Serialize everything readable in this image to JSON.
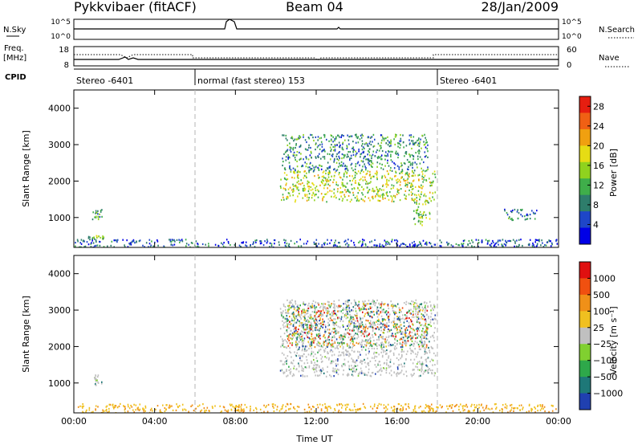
{
  "header": {
    "station": "Pykkvibaer (fitACF)",
    "beam": "Beam 04",
    "date": "28/Jan/2009"
  },
  "sky_panel": {
    "left_label": "N.Sky",
    "right_label": "N.Search",
    "left_ticks": [
      "10^5",
      "10^0"
    ],
    "right_ticks": [
      "10^5",
      "10^0"
    ]
  },
  "freq_panel": {
    "left_label": "Freq.",
    "left_unit": "[MHz]",
    "right_label": "Nave",
    "left_ticks": [
      "18",
      "8"
    ],
    "right_ticks": [
      "60",
      "0"
    ]
  },
  "cpid_panel": {
    "label": "CPID",
    "segments": [
      {
        "start": 0,
        "end": 6,
        "text": "Stereo -6401"
      },
      {
        "start": 6,
        "end": 18,
        "text": "normal (fast stereo) 153"
      },
      {
        "start": 18,
        "end": 24,
        "text": "Stereo -6401"
      }
    ]
  },
  "chart_data": [
    {
      "type": "heatmap",
      "panel": "power",
      "xlabel": "",
      "ylabel": "Slant Range [km]",
      "xlim": [
        0,
        24
      ],
      "ylim": [
        180,
        4500
      ],
      "yticks": [
        "1000",
        "2000",
        "3000",
        "4000"
      ],
      "colorbar": {
        "label": "Power [dB]",
        "tick_labels": [
          "4",
          "8",
          "12",
          "16",
          "20",
          "24",
          "28"
        ],
        "range": [
          0,
          30
        ],
        "colors": [
          "#0000e6",
          "#1e46c8",
          "#2e7d6b",
          "#3fae4a",
          "#90d21e",
          "#e6dc14",
          "#f0a010",
          "#f06014",
          "#e61e10"
        ]
      },
      "regions": [
        {
          "t": [
            0.9,
            1.4
          ],
          "r": [
            950,
            1250
          ],
          "level": 10
        },
        {
          "t": [
            0.7,
            1.5
          ],
          "r": [
            420,
            520
          ],
          "level": 12
        },
        {
          "t": [
            0.0,
            24.0
          ],
          "r": [
            200,
            420
          ],
          "level": 6
        },
        {
          "t": [
            10.2,
            17.9
          ],
          "r": [
            1450,
            2300
          ],
          "level": 16
        },
        {
          "t": [
            10.3,
            17.5
          ],
          "r": [
            2300,
            3300
          ],
          "level": 9
        },
        {
          "t": [
            16.8,
            17.6
          ],
          "r": [
            800,
            1500
          ],
          "level": 14
        },
        {
          "t": [
            21.3,
            22.9
          ],
          "r": [
            950,
            1250
          ],
          "level": 8
        }
      ]
    },
    {
      "type": "heatmap",
      "panel": "velocity",
      "xlabel": "Time UT",
      "ylabel": "Slant Range [km]",
      "xlim": [
        0,
        24
      ],
      "ylim": [
        180,
        4500
      ],
      "xticks": [
        "00:00",
        "04:00",
        "08:00",
        "12:00",
        "16:00",
        "20:00",
        "00:00"
      ],
      "yticks": [
        "1000",
        "2000",
        "3000",
        "4000"
      ],
      "colorbar": {
        "label": "Velocity [m s⁻¹]",
        "tick_labels": [
          "1000",
          "500",
          "100",
          "25",
          "−25",
          "−100",
          "−500",
          "−1000"
        ],
        "colors": [
          "#2040b0",
          "#1e7878",
          "#2ea84a",
          "#80d030",
          "#c0c0c0",
          "#f0c020",
          "#f09018",
          "#f05010",
          "#e01010"
        ]
      },
      "regions": [
        {
          "t": [
            0.9,
            1.4
          ],
          "r": [
            950,
            1250
          ],
          "class": "ground"
        },
        {
          "t": [
            0.0,
            24.0
          ],
          "r": [
            200,
            450
          ],
          "class": "low-negative"
        },
        {
          "t": [
            10.2,
            17.9
          ],
          "r": [
            1200,
            3300
          ],
          "class": "ground"
        },
        {
          "t": [
            10.5,
            17.5
          ],
          "r": [
            2000,
            3200
          ],
          "class": "positive"
        }
      ]
    }
  ],
  "colors": {
    "dashed_divider": "#b4b4b4",
    "axis": "#000000"
  }
}
